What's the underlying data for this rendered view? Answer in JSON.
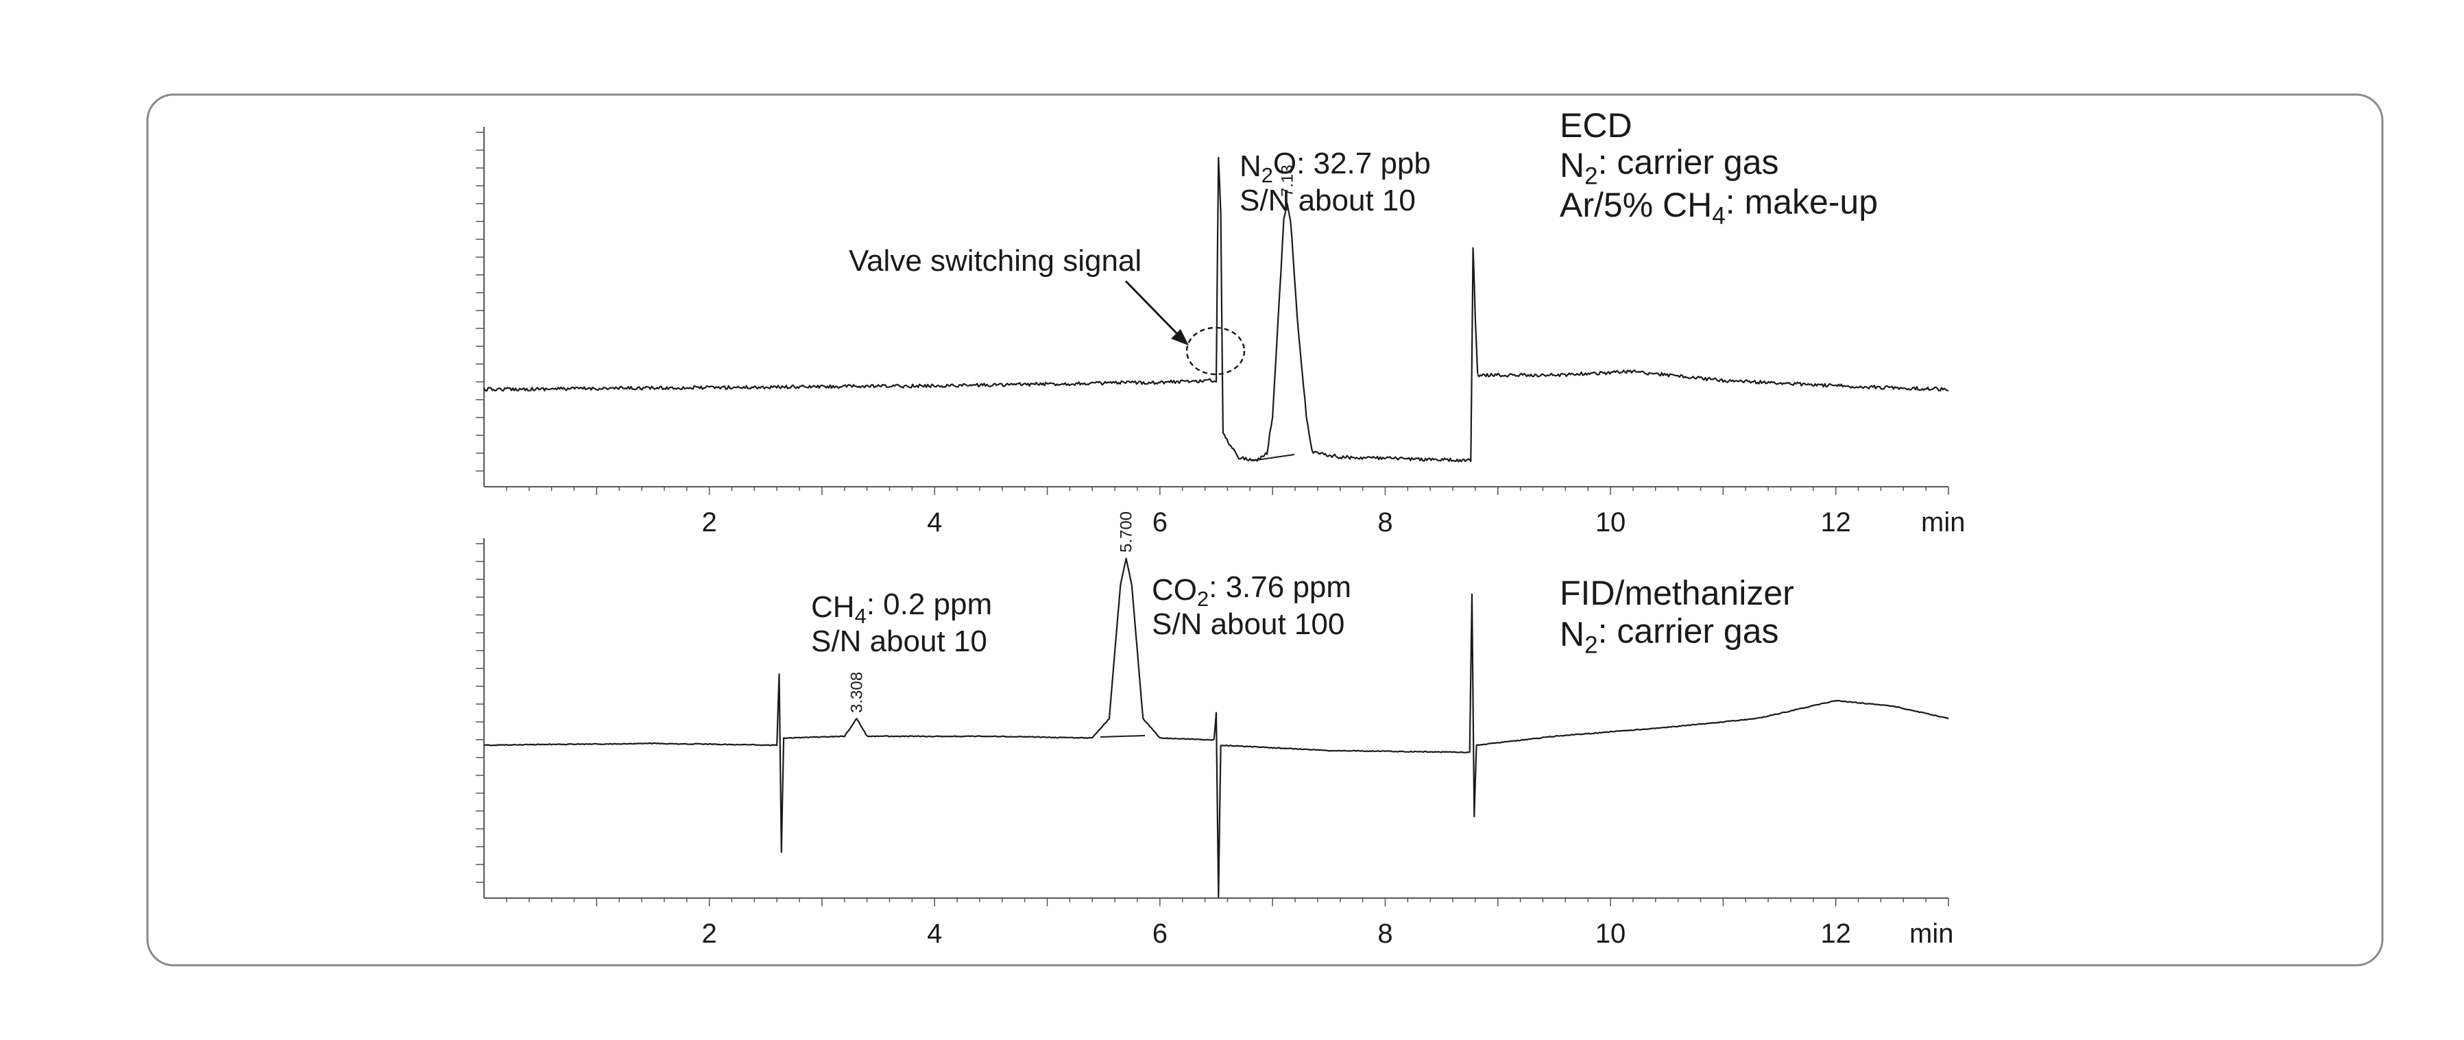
{
  "colors": {
    "trace": "#1a1a1a",
    "axis": "#555555",
    "frame": "#888888",
    "background": "#ffffff"
  },
  "chart_data": [
    {
      "type": "line",
      "panel": "ECD",
      "x_unit": "min",
      "xlim": [
        0,
        13
      ],
      "x_ticks": [
        2,
        4,
        6,
        8,
        10,
        12
      ],
      "x_tick_labels": [
        "2",
        "4",
        "6",
        "8",
        "10",
        "12"
      ],
      "baseline": 0,
      "ylim": [
        -30,
        180
      ],
      "segments": [
        [
          [
            0,
            0
          ],
          [
            2,
            1
          ],
          [
            4,
            2
          ],
          [
            6,
            4
          ],
          [
            6.48,
            5
          ],
          [
            6.5,
            5
          ],
          [
            6.52,
            130
          ],
          [
            6.54,
            100
          ],
          [
            6.56,
            -25
          ],
          [
            6.7,
            -38
          ],
          [
            6.85,
            -40
          ],
          [
            6.95,
            -36
          ]
        ],
        [
          [
            6.95,
            -36
          ],
          [
            7.0,
            -15
          ],
          [
            7.05,
            40
          ],
          [
            7.1,
            95
          ],
          [
            7.13,
            105
          ],
          [
            7.16,
            95
          ],
          [
            7.22,
            40
          ],
          [
            7.3,
            -15
          ],
          [
            7.35,
            -35
          ],
          [
            7.6,
            -38
          ],
          [
            8.2,
            -39
          ],
          [
            8.76,
            -40
          ],
          [
            8.78,
            80
          ],
          [
            8.8,
            40
          ],
          [
            8.82,
            8
          ]
        ],
        [
          [
            8.82,
            8
          ],
          [
            9.5,
            8
          ],
          [
            10.2,
            10
          ],
          [
            11,
            5
          ],
          [
            12,
            2
          ],
          [
            13,
            0
          ]
        ]
      ],
      "peaks": [
        {
          "x": 7.13,
          "y": 105,
          "label": "7.13"
        }
      ],
      "annotations": {
        "detector": "ECD",
        "carrier": "N2: carrier gas",
        "makeup": "Ar/5% CH4: make-up",
        "compound": "N2O: 32.7 ppb",
        "sn": "S/N about 10",
        "valve": "Valve switching signal"
      },
      "x_unit_label": "min"
    },
    {
      "type": "line",
      "panel": "FID/methanizer",
      "x_unit": "min",
      "xlim": [
        0,
        13
      ],
      "x_ticks": [
        2,
        4,
        6,
        8,
        10,
        12
      ],
      "x_tick_labels": [
        "2",
        "4",
        "6",
        "8",
        "10",
        "12"
      ],
      "baseline": 0,
      "ylim": [
        -90,
        120
      ],
      "segments": [
        [
          [
            0,
            0
          ],
          [
            1.5,
            1
          ],
          [
            2.6,
            0
          ],
          [
            2.62,
            40
          ],
          [
            2.64,
            -60
          ],
          [
            2.66,
            4
          ],
          [
            3.2,
            5
          ],
          [
            3.308,
            15
          ],
          [
            3.4,
            5
          ],
          [
            4.5,
            5
          ],
          [
            5.4,
            4
          ],
          [
            5.55,
            15
          ],
          [
            5.65,
            90
          ],
          [
            5.7,
            105
          ],
          [
            5.75,
            90
          ],
          [
            5.85,
            15
          ],
          [
            6.0,
            4
          ],
          [
            6.48,
            3
          ],
          [
            6.5,
            18
          ],
          [
            6.52,
            -85
          ],
          [
            6.54,
            0
          ],
          [
            7.5,
            -3
          ],
          [
            8.75,
            -4
          ],
          [
            8.77,
            85
          ],
          [
            8.79,
            -40
          ],
          [
            8.81,
            0
          ],
          [
            9.5,
            5
          ],
          [
            10.5,
            10
          ],
          [
            11.3,
            15
          ],
          [
            12,
            25
          ],
          [
            12.5,
            22
          ],
          [
            13,
            15
          ]
        ]
      ],
      "peaks": [
        {
          "x": 3.308,
          "y": 15,
          "label": "3.308"
        },
        {
          "x": 5.7,
          "y": 105,
          "label": "5.700"
        }
      ],
      "annotations": {
        "detector": "FID/methanizer",
        "carrier": "N2: carrier gas",
        "compound1": "CH4: 0.2 ppm",
        "sn1": "S/N about 10",
        "compound2": "CO2: 3.76 ppm",
        "sn2": "S/N about 100"
      },
      "x_unit_label": "min"
    }
  ]
}
